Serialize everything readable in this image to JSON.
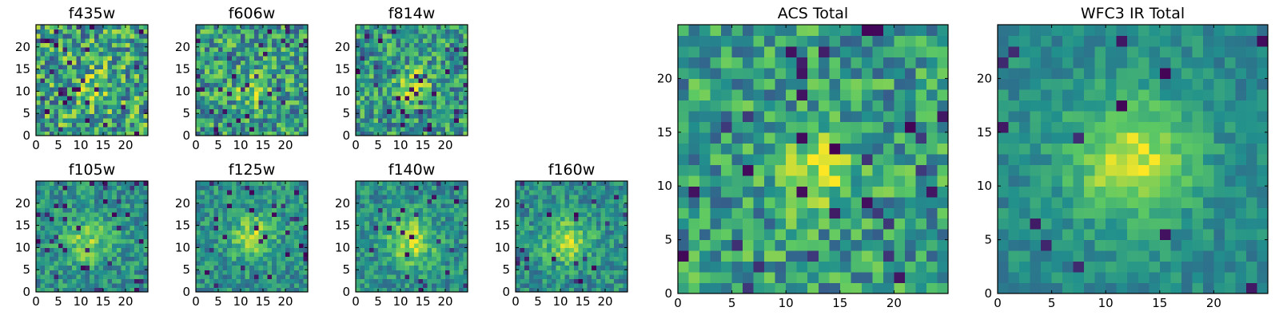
{
  "chart_data": {
    "type": "heatmap",
    "grid_size": 25,
    "colormap": "viridis",
    "colors": {
      "background": "#ffffff",
      "frame": "#000000",
      "viridis": [
        "#440154",
        "#3b528b",
        "#21908d",
        "#5dc963",
        "#fde725"
      ]
    },
    "panels": [
      {
        "key": "f435w",
        "title": "f435w",
        "size": "small",
        "xticks": [
          0,
          5,
          10,
          15,
          20
        ],
        "yticks": [
          0,
          5,
          10,
          15,
          20
        ],
        "xlim": [
          0,
          25
        ],
        "ylim": [
          0,
          25
        ],
        "source": {
          "center": [
            12,
            10
          ],
          "peak_strength": 0.12,
          "sigma": 3.5,
          "background": 0.58,
          "noise": 0.34,
          "low_fraction": 0.05,
          "seed": 11
        }
      },
      {
        "key": "f606w",
        "title": "f606w",
        "size": "small",
        "xticks": [
          0,
          5,
          10,
          15,
          20
        ],
        "yticks": [
          0,
          5,
          10,
          15,
          20
        ],
        "xlim": [
          0,
          25
        ],
        "ylim": [
          0,
          25
        ],
        "source": {
          "center": [
            12,
            10
          ],
          "peak_strength": 0.3,
          "sigma": 2.5,
          "background": 0.55,
          "noise": 0.3,
          "low_fraction": 0.05,
          "seed": 23
        }
      },
      {
        "key": "f814w",
        "title": "f814w",
        "size": "small",
        "xticks": [
          0,
          5,
          10,
          15,
          20
        ],
        "yticks": [
          0,
          5,
          10,
          15,
          20
        ],
        "xlim": [
          0,
          25
        ],
        "ylim": [
          0,
          25
        ],
        "source": {
          "center": [
            12,
            11
          ],
          "peak_strength": 0.32,
          "sigma": 2.6,
          "background": 0.54,
          "noise": 0.28,
          "low_fraction": 0.05,
          "seed": 37
        }
      },
      {
        "key": "f105w",
        "title": "f105w",
        "size": "small",
        "xticks": [
          0,
          5,
          10,
          15,
          20
        ],
        "yticks": [
          0,
          5,
          10,
          15,
          20
        ],
        "xlim": [
          0,
          25
        ],
        "ylim": [
          0,
          25
        ],
        "source": {
          "center": [
            11,
            11
          ],
          "peak_strength": 0.32,
          "sigma": 3.5,
          "background": 0.5,
          "noise": 0.2,
          "low_fraction": 0.05,
          "seed": 41
        }
      },
      {
        "key": "f125w",
        "title": "f125w",
        "size": "small",
        "xticks": [
          0,
          5,
          10,
          15,
          20
        ],
        "yticks": [
          0,
          5,
          10,
          15,
          20
        ],
        "xlim": [
          0,
          25
        ],
        "ylim": [
          0,
          25
        ],
        "source": {
          "center": [
            12,
            12
          ],
          "peak_strength": 0.35,
          "sigma": 3.5,
          "background": 0.5,
          "noise": 0.18,
          "low_fraction": 0.05,
          "seed": 53
        }
      },
      {
        "key": "f140w",
        "title": "f140w",
        "size": "small",
        "xticks": [
          0,
          5,
          10,
          15,
          20
        ],
        "yticks": [
          0,
          5,
          10,
          15,
          20
        ],
        "xlim": [
          0,
          25
        ],
        "ylim": [
          0,
          25
        ],
        "source": {
          "center": [
            12,
            11
          ],
          "peak_strength": 0.38,
          "sigma": 3.8,
          "background": 0.5,
          "noise": 0.18,
          "low_fraction": 0.04,
          "seed": 67
        }
      },
      {
        "key": "f160w",
        "title": "f160w",
        "size": "small",
        "xticks": [
          0,
          5,
          10,
          15,
          20
        ],
        "yticks": [
          0,
          5,
          10,
          15,
          20
        ],
        "xlim": [
          0,
          25
        ],
        "ylim": [
          0,
          25
        ],
        "source": {
          "center": [
            11,
            11
          ],
          "peak_strength": 0.35,
          "sigma": 3.6,
          "background": 0.5,
          "noise": 0.18,
          "low_fraction": 0.05,
          "seed": 79
        }
      },
      {
        "key": "acs_total",
        "title": "ACS Total",
        "size": "large",
        "xticks": [
          0,
          5,
          10,
          15,
          20
        ],
        "yticks": [
          0,
          5,
          10,
          15,
          20
        ],
        "xlim": [
          0,
          25
        ],
        "ylim": [
          0,
          25
        ],
        "source": {
          "center": [
            12,
            11
          ],
          "peak_strength": 0.4,
          "sigma": 2.6,
          "background": 0.55,
          "noise": 0.26,
          "low_fraction": 0.05,
          "seed": 97
        }
      },
      {
        "key": "wfc3_ir_total",
        "title": "WFC3 IR Total",
        "size": "large",
        "xticks": [
          0,
          5,
          10,
          15,
          20
        ],
        "yticks": [
          0,
          5,
          10,
          15,
          20
        ],
        "xlim": [
          0,
          25
        ],
        "ylim": [
          0,
          25
        ],
        "source": {
          "center": [
            12,
            12
          ],
          "peak_strength": 0.45,
          "sigma": 4.0,
          "background": 0.48,
          "noise": 0.12,
          "low_fraction": 0.03,
          "seed": 131
        }
      }
    ]
  }
}
